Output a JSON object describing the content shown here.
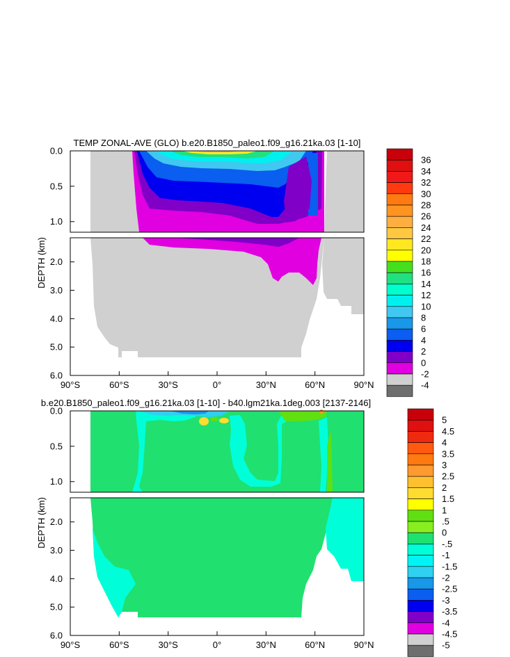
{
  "chart_data": [
    {
      "type": "filled-contour",
      "title": "TEMP ZONAL-AVE (GLO) b.e20.B1850_paleo1.f09_g16.21ka.03 [1-10]",
      "ylabel": "DEPTH (km)",
      "xlabel": "",
      "x_ticks": [
        "90°S",
        "60°S",
        "30°S",
        "0°",
        "30°N",
        "60°N",
        "90°N"
      ],
      "y_ticks_upper": [
        "0.0",
        "0.5",
        "1.0"
      ],
      "y_ticks_lower": [
        "2.0",
        "3.0",
        "4.0",
        "5.0",
        "6.0"
      ],
      "upper_ylim_km": [
        0,
        1.15
      ],
      "lower_ylim_km": [
        1.15,
        6.0
      ],
      "xlim_deg": [
        -90,
        90
      ],
      "colorbar_labels": [
        "36",
        "34",
        "32",
        "30",
        "28",
        "26",
        "24",
        "22",
        "20",
        "18",
        "16",
        "14",
        "12",
        "10",
        "8",
        "6",
        "4",
        "2",
        "0",
        "-2",
        "-4"
      ],
      "colorbar_colors": [
        "#c8000a",
        "#e01010",
        "#f01818",
        "#ff3a10",
        "#ff7a10",
        "#ff9420",
        "#ffae40",
        "#ffc840",
        "#ffe820",
        "#ffff00",
        "#44e01e",
        "#20e080",
        "#00ffcc",
        "#00f0f0",
        "#40c8f0",
        "#1898e8",
        "#0a5ef0",
        "#0000f0",
        "#8000c8",
        "#e000e0",
        "#d0d0d0",
        "#6e6e6e"
      ]
    },
    {
      "type": "filled-contour",
      "title": "b.e20.B1850_paleo1.f09_g16.21ka.03 [1-10] - b40.lgm21ka.1deg.003 [2137-2146]",
      "ylabel": "DEPTH (km)",
      "xlabel": "",
      "x_ticks": [
        "90°S",
        "60°S",
        "30°S",
        "0°",
        "30°N",
        "60°N",
        "90°N"
      ],
      "y_ticks_upper": [
        "0.0",
        "0.5",
        "1.0"
      ],
      "y_ticks_lower": [
        "2.0",
        "3.0",
        "4.0",
        "5.0",
        "6.0"
      ],
      "upper_ylim_km": [
        0,
        1.15
      ],
      "lower_ylim_km": [
        1.15,
        6.0
      ],
      "xlim_deg": [
        -90,
        90
      ],
      "colorbar_labels": [
        "5",
        "4.5",
        "4",
        "3.5",
        "3",
        "2.5",
        "2",
        "1.5",
        "1",
        ".5",
        "0",
        "-.5",
        "-1",
        "-1.5",
        "-2",
        "-2.5",
        "-3",
        "-3.5",
        "-4",
        "-4.5",
        "-5"
      ],
      "colorbar_colors": [
        "#c8000a",
        "#e01010",
        "#f02a10",
        "#ff5a10",
        "#ff7a10",
        "#ff9a30",
        "#ffc030",
        "#ffdc30",
        "#ffff00",
        "#60e010",
        "#88ee20",
        "#20e070",
        "#00ffd8",
        "#00f4f4",
        "#30d0f0",
        "#1898e8",
        "#0a5ef0",
        "#0000f0",
        "#8000c8",
        "#e000e0",
        "#d0d0d0",
        "#6e6e6e"
      ]
    }
  ]
}
